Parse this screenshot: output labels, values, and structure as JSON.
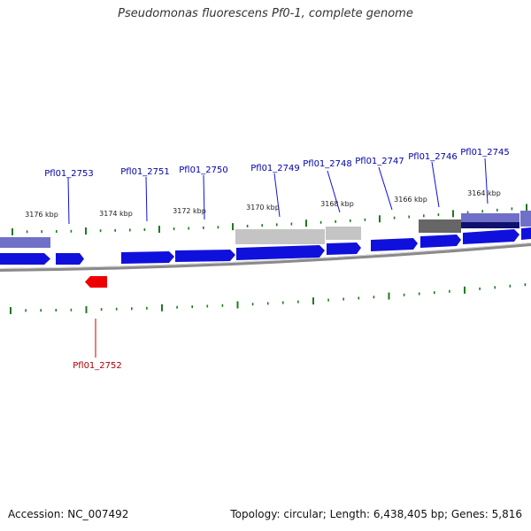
{
  "title": "Pseudomonas fluorescens Pf0-1, complete genome",
  "footer": {
    "accession": "Accession: NC_007492",
    "info": "Topology: circular; Length: 6,438,405 bp; Genes: 5,816"
  },
  "colors": {
    "forward_gene": "#1010dd",
    "reverse_gene": "#ee0000",
    "forward_label": "#0000aa",
    "reverse_label": "#aa0000",
    "tick": "#1e7a1e",
    "backbone": "#8a8a8a",
    "light_gray_feature": "#c4c4c4",
    "dark_gray_feature": "#666666",
    "lavender_feature": "#7070c8",
    "navy_feature": "#10106e"
  },
  "kbp_labels": [
    "3176 kbp",
    "3174 kbp",
    "3172 kbp",
    "3170 kbp",
    "3168 kbp",
    "3166 kbp",
    "3164 kbp"
  ],
  "gene_labels": {
    "forward": [
      "Pfl01_2753",
      "Pfl01_2751",
      "Pfl01_2750",
      "Pfl01_2749",
      "Pfl01_2748",
      "Pfl01_2747",
      "Pfl01_2746",
      "Pfl01_2745"
    ],
    "reverse": [
      "Pfl01_2752"
    ]
  }
}
